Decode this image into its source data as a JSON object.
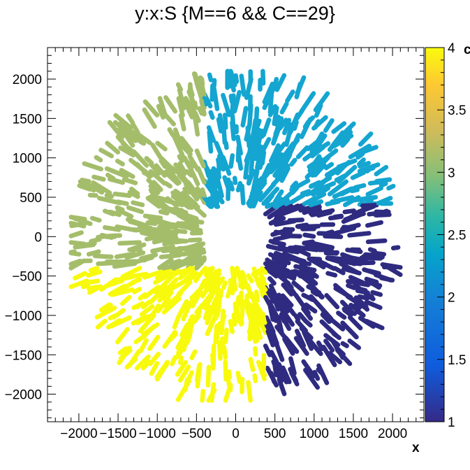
{
  "chart_data": {
    "type": "scatter",
    "title": "y:x:S {M==6 && C==29}",
    "xlabel": "x",
    "ylabel": "",
    "zlabel": "c",
    "xlim": [
      -2400,
      2400
    ],
    "ylim": [
      -2350,
      2400
    ],
    "zlim": [
      1,
      4
    ],
    "x_ticks": [
      -2000,
      -1500,
      -1000,
      -500,
      0,
      500,
      1000,
      1500,
      2000
    ],
    "x_tick_labels": [
      "−2000",
      "−1500",
      "−1000",
      "−500",
      "0",
      "500",
      "1000",
      "1500",
      "2000"
    ],
    "y_ticks": [
      -2000,
      -1500,
      -1000,
      -500,
      0,
      500,
      1000,
      1500,
      2000
    ],
    "y_tick_labels": [
      "−2000",
      "−1500",
      "−1000",
      "−500",
      "0",
      "500",
      "1000",
      "1500",
      "2000"
    ],
    "z_ticks": [
      1,
      1.5,
      2,
      2.5,
      3,
      3.5,
      4
    ],
    "z_tick_labels": [
      "1",
      "1.5",
      "2",
      "2.5",
      "3",
      "3.5",
      "4"
    ],
    "grid": false,
    "colorbar": "right",
    "series": [
      {
        "value": 1,
        "color": "#2e2b80",
        "x_range": [
          380,
          2100
        ],
        "y_range": [
          -2080,
          400
        ]
      },
      {
        "value": 2,
        "color": "#14a5d0",
        "x_range": [
          -400,
          2100
        ],
        "y_range": [
          380,
          2100
        ]
      },
      {
        "value": 3,
        "color": "#a4bd6b",
        "x_range": [
          -2100,
          -400
        ],
        "y_range": [
          -400,
          2100
        ]
      },
      {
        "value": 4,
        "color": "#f8fa0d",
        "x_range": [
          -2100,
          380
        ],
        "y_range": [
          -2080,
          -400
        ]
      }
    ]
  }
}
